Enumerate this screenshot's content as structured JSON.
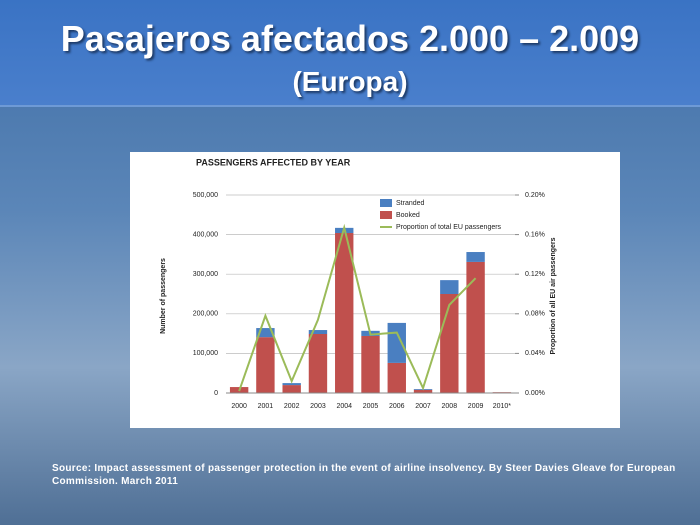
{
  "slide": {
    "title": "Pasajeros afectados 2.000 – 2.009",
    "subtitle": "(Europa)",
    "source": "Source: Impact assessment of passenger protection in the event of airline insolvency. By Steer Davies Gleave for European Commission. March 2011"
  },
  "chart_data": {
    "type": "bar",
    "stacked": true,
    "title": "PASSENGERS AFFECTED BY YEAR",
    "y_label": "Number of passengers",
    "y2_label": "Proportion of all EU air passengers",
    "categories": [
      "2000",
      "2001",
      "2002",
      "2003",
      "2004",
      "2005",
      "2006",
      "2007",
      "2008",
      "2009",
      "2010*"
    ],
    "series": [
      {
        "name": "Stranded",
        "type": "bar",
        "color": "#4a7fc1",
        "values": [
          0,
          23000,
          5000,
          10000,
          13000,
          13000,
          101000,
          2000,
          35000,
          25000,
          0
        ]
      },
      {
        "name": "Booked",
        "type": "bar",
        "color": "#c0504d",
        "values": [
          15000,
          141000,
          20000,
          149000,
          404000,
          144000,
          76000,
          8000,
          250000,
          331000,
          2000
        ]
      },
      {
        "name": "Proportion of total EU passengers",
        "type": "line",
        "axis": "y2",
        "color": "#9bbb59",
        "values": [
          0.002,
          0.078,
          0.012,
          0.074,
          0.167,
          0.059,
          0.061,
          0.005,
          0.089,
          0.116,
          null
        ]
      }
    ],
    "ylim": [
      0,
      500000
    ],
    "yticks": [
      0,
      {
        "value": 100000,
        "label": "100,000"
      },
      {
        "value": 200000,
        "label": "200,000"
      },
      {
        "value": 300000,
        "label": "300,000"
      },
      {
        "value": 400000,
        "label": "400,000"
      },
      {
        "value": 500000,
        "label": "500,000"
      }
    ],
    "y2lim": [
      0,
      0.2
    ],
    "y2ticks": [
      {
        "value": 0,
        "label": "0.00%"
      },
      {
        "value": 0.04,
        "label": "0.04%"
      },
      {
        "value": 0.08,
        "label": "0.08%"
      },
      {
        "value": 0.12,
        "label": "0.12%"
      },
      {
        "value": 0.16,
        "label": "0.16%"
      },
      {
        "value": 0.2,
        "label": "0.20%"
      }
    ],
    "grid": true
  }
}
